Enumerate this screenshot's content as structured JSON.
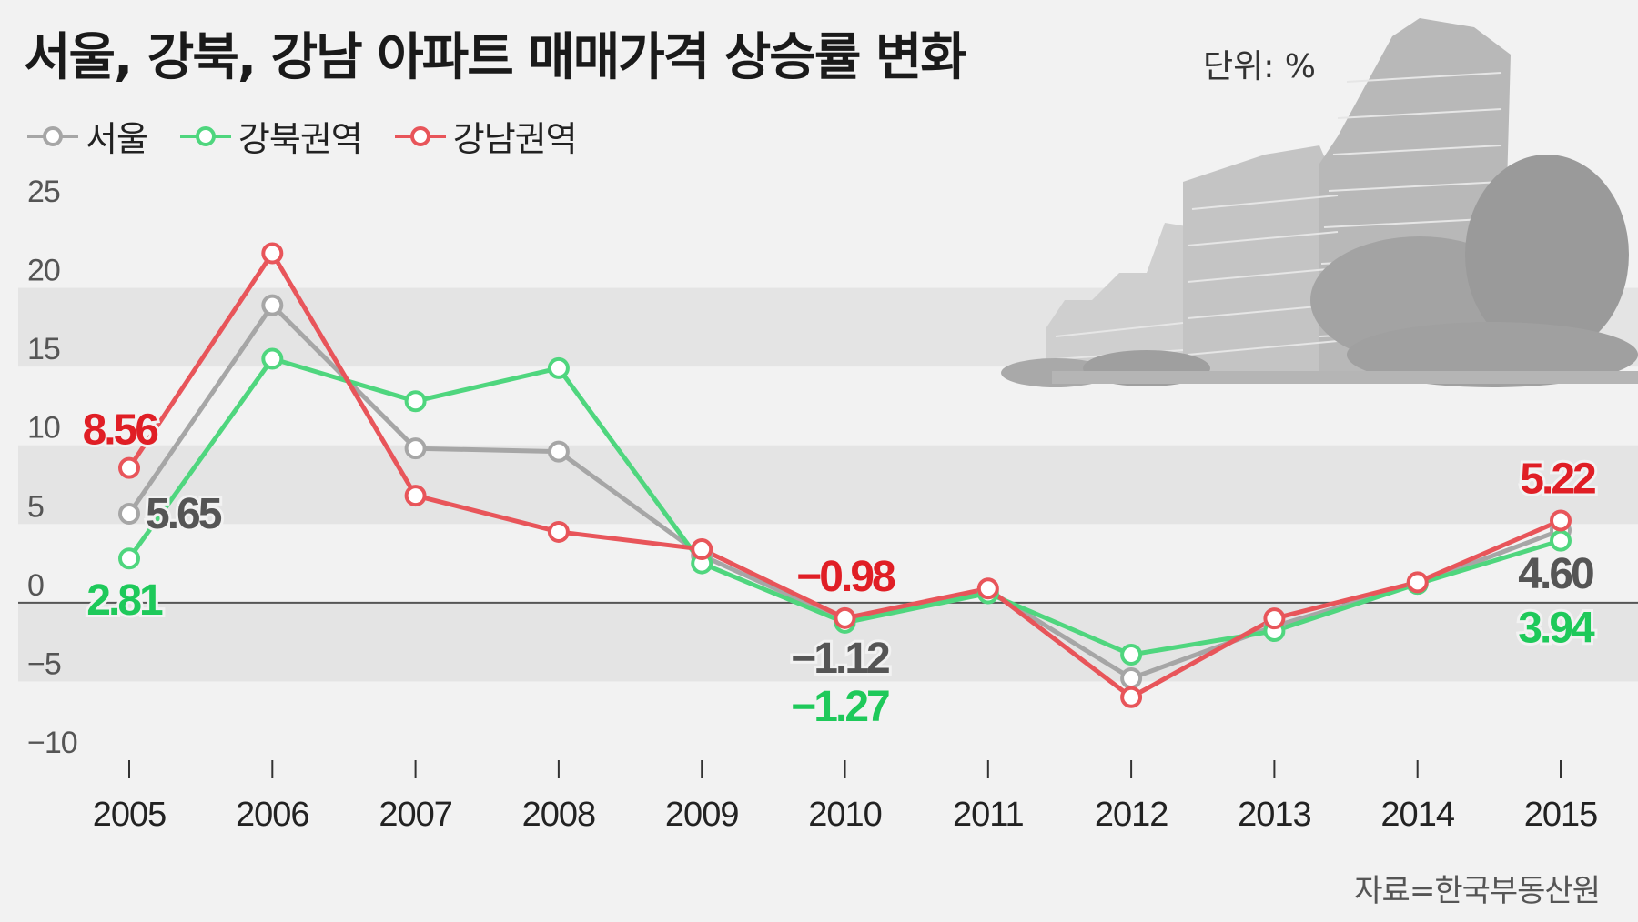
{
  "header": {
    "title": "서울, 강북, 강남 아파트 매매가격 상승률 변화",
    "unit": "단위: %"
  },
  "legend": [
    {
      "label": "서울",
      "color": "#a6a6a6"
    },
    {
      "label": "강북권역",
      "color": "#4fd67e"
    },
    {
      "label": "강남권역",
      "color": "#e8555a"
    }
  ],
  "source": "자료=한국부동산원",
  "chart_data": {
    "type": "line",
    "title": "서울, 강북, 강남 아파트 매매가격 상승률 변화",
    "xlabel": "",
    "ylabel": "단위: %",
    "ylim": [
      -10,
      25
    ],
    "yticks": [
      25,
      20,
      15,
      10,
      5,
      0,
      -5,
      -10
    ],
    "ytick_labels": [
      "25",
      "20",
      "15",
      "10",
      "5",
      "0",
      "−5",
      "−10"
    ],
    "categories": [
      "2005",
      "2006",
      "2007",
      "2008",
      "2009",
      "2010",
      "2011",
      "2012",
      "2013",
      "2014",
      "2015"
    ],
    "series": [
      {
        "name": "서울",
        "color": "#a6a6a6",
        "label_color": "#555555",
        "values": [
          5.65,
          18.9,
          9.8,
          9.6,
          3.0,
          -1.12,
          0.8,
          -4.8,
          -1.5,
          1.2,
          4.6
        ]
      },
      {
        "name": "강북권역",
        "color": "#4fd67e",
        "label_color": "#1ec95a",
        "values": [
          2.81,
          15.5,
          12.8,
          14.9,
          2.5,
          -1.27,
          0.6,
          -3.3,
          -1.8,
          1.2,
          3.94
        ]
      },
      {
        "name": "강남권역",
        "color": "#e8555a",
        "label_color": "#e01e25",
        "values": [
          8.56,
          22.2,
          6.8,
          4.5,
          3.4,
          -0.98,
          0.9,
          -6.0,
          -1.0,
          1.3,
          5.22
        ]
      }
    ],
    "annotations": [
      {
        "text": "8.56",
        "series": "강남권역",
        "category": "2005",
        "color": "#e01e25",
        "anchor": "end",
        "dx": 30,
        "dy": -26
      },
      {
        "text": "5.65",
        "series": "서울",
        "category": "2005",
        "color": "#555555",
        "anchor": "start",
        "dx": 18,
        "dy": 16
      },
      {
        "text": "2.81",
        "series": "강북권역",
        "category": "2005",
        "color": "#1ec95a",
        "anchor": "middle",
        "dx": -6,
        "dy": 62
      },
      {
        "text": "−0.98",
        "series": "강남권역",
        "category": "2010",
        "color": "#e01e25",
        "anchor": "middle",
        "dx": 0,
        "dy": -30
      },
      {
        "text": "−1.12",
        "series": "서울",
        "category": "2010",
        "color": "#555555",
        "anchor": "middle",
        "dx": -6,
        "dy": 58
      },
      {
        "text": "−1.27",
        "series": "강북권역",
        "category": "2010",
        "color": "#1ec95a",
        "anchor": "middle",
        "dx": -6,
        "dy": 108
      },
      {
        "text": "5.22",
        "series": "강남권역",
        "category": "2015",
        "color": "#e01e25",
        "anchor": "middle",
        "dx": -4,
        "dy": -30
      },
      {
        "text": "4.60",
        "series": "서울",
        "category": "2015",
        "color": "#555555",
        "anchor": "middle",
        "dx": -6,
        "dy": 64
      },
      {
        "text": "3.94",
        "series": "강북권역",
        "category": "2015",
        "color": "#1ec95a",
        "anchor": "middle",
        "dx": -6,
        "dy": 112
      }
    ]
  }
}
